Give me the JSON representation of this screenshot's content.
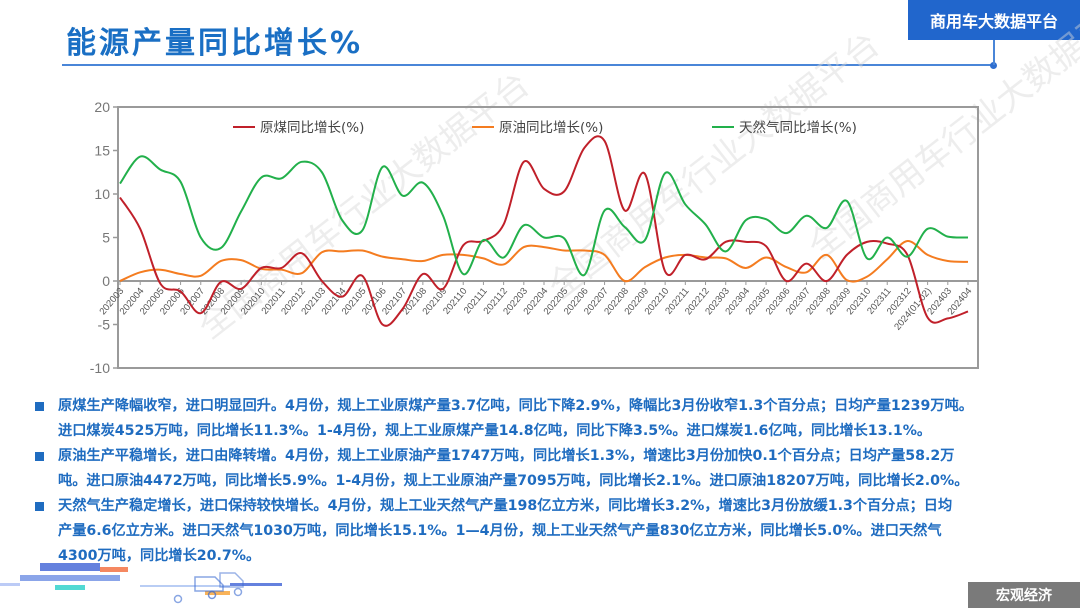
{
  "header": {
    "title": "能源产量同比增长%",
    "badge": "商用车大数据平台"
  },
  "footer": {
    "tag": "宏观经济"
  },
  "watermark": "全国商用车行业大数据平台",
  "colors": {
    "title": "#1a6fc4",
    "badge_bg": "#2166cc",
    "coal": "#c0202a",
    "oil": "#f47c20",
    "gas": "#22b04b",
    "text": "#1f6cc0",
    "footer_bg": "#7a7a7a"
  },
  "chart_data": {
    "type": "line",
    "title": "",
    "xlabel": "",
    "ylabel": "",
    "ylim": [
      -10,
      20
    ],
    "yticks": [
      20,
      15,
      10,
      5,
      0,
      -5,
      -10
    ],
    "grid": false,
    "legend_position": "top",
    "categories": [
      "202003",
      "202004",
      "202005",
      "202006",
      "202007",
      "202008",
      "202009",
      "202010",
      "202011",
      "202012",
      "202103",
      "202104",
      "202105",
      "202106",
      "202107",
      "202108",
      "202109",
      "202110",
      "202111",
      "202112",
      "202203",
      "202204",
      "202205",
      "202206",
      "202207",
      "202208",
      "202209",
      "202210",
      "202211",
      "202212",
      "202303",
      "202304",
      "202305",
      "202306",
      "202307",
      "202308",
      "202309",
      "202310",
      "202311",
      "202312",
      "2024(01-02)",
      "202403",
      "202404"
    ],
    "series": [
      {
        "name": "原煤同比增长(%)",
        "color": "#c0202a",
        "values": [
          9.6,
          6.0,
          -0.3,
          -1.2,
          -3.7,
          -0.1,
          -0.9,
          1.5,
          1.5,
          3.2,
          0.0,
          -1.8,
          0.6,
          -5.0,
          -3.2,
          0.8,
          -0.9,
          4.1,
          4.6,
          6.5,
          13.7,
          10.6,
          10.3,
          15.3,
          16.1,
          8.1,
          12.3,
          1.1,
          3.0,
          2.5,
          4.5,
          4.5,
          4.0,
          0.0,
          2.0,
          0.0,
          3.0,
          4.5,
          4.3,
          3.0,
          -4.2,
          -4.3,
          -3.5
        ]
      },
      {
        "name": "原油同比增长(%)",
        "color": "#f47c20",
        "values": [
          0.0,
          1.0,
          1.3,
          0.8,
          0.6,
          2.3,
          2.4,
          1.4,
          1.3,
          0.9,
          3.3,
          3.4,
          3.5,
          2.8,
          2.5,
          2.3,
          3.0,
          3.0,
          2.6,
          1.9,
          3.9,
          3.9,
          3.5,
          3.5,
          3.0,
          0.0,
          1.6,
          2.7,
          3.0,
          2.7,
          2.6,
          1.5,
          2.7,
          1.6,
          1.0,
          3.0,
          0.1,
          0.5,
          2.5,
          4.6,
          3.0,
          2.3,
          2.2
        ]
      },
      {
        "name": "天然气同比增长(%)",
        "color": "#22b04b",
        "values": [
          11.2,
          14.3,
          12.8,
          11.4,
          5.0,
          3.8,
          8.0,
          11.9,
          11.8,
          13.7,
          12.5,
          7.0,
          5.8,
          13.1,
          9.8,
          11.3,
          7.5,
          0.8,
          4.7,
          2.7,
          6.4,
          5.0,
          4.9,
          0.7,
          8.1,
          6.2,
          4.7,
          12.4,
          8.8,
          6.5,
          3.4,
          7.0,
          7.1,
          5.5,
          7.5,
          6.1,
          9.2,
          2.6,
          5.0,
          2.8,
          6.0,
          5.1,
          5.0
        ]
      }
    ]
  },
  "bullets": [
    {
      "line1": "原煤生产降幅收窄，进口明显回升。4月份，规上工业原煤产量3.7亿吨，同比下降2.9%，降幅比3月份收窄1.3个百分点；日均产量1239万吨。",
      "line2": "进口煤炭4525万吨，同比增长11.3%。1-4月份，规上工业原煤产量14.8亿吨，同比下降3.5%。进口煤炭1.6亿吨，同比增长13.1%。"
    },
    {
      "line1": "原油生产平稳增长，进口由降转增。4月份，规上工业原油产量1747万吨，同比增长1.3%，增速比3月份加快0.1个百分点；日均产量58.2万",
      "line2": "吨。进口原油4472万吨，同比增长5.9%。1-4月份，规上工业原油产量7095万吨，同比增长2.1%。进口原油18207万吨，同比增长2.0%。"
    },
    {
      "line1": "天然气生产稳定增长，进口保持较快增长。4月份，规上工业天然气产量198亿立方米，同比增长3.2%，增速比3月份放缓1.3个百分点；日均",
      "line2": "产量6.6亿立方米。进口天然气1030万吨，同比增长15.1%。1—4月份，规上工业天然气产量830亿立方米，同比增长5.0%。进口天然气",
      "line3": "4300万吨，同比增长20.7%。"
    }
  ]
}
